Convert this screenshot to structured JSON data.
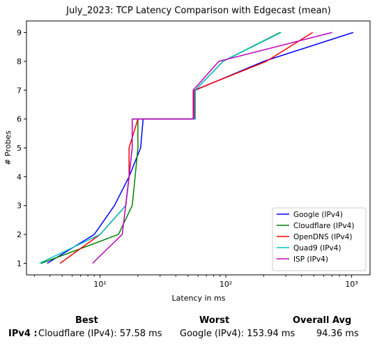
{
  "chart_data": {
    "type": "line",
    "title": "July_2023: TCP Latency Comparison with Edgecast (mean)",
    "xlabel": "Latency in ms",
    "ylabel": "# Probes",
    "xscale": "log",
    "xlim": [
      2.6,
      1400
    ],
    "ylim": [
      0.6,
      9.4
    ],
    "xticks": [
      {
        "value": 10,
        "label": "10¹"
      },
      {
        "value": 100,
        "label": "10²"
      },
      {
        "value": 1000,
        "label": "10³"
      }
    ],
    "yticks": [
      1,
      2,
      3,
      4,
      5,
      6,
      7,
      8,
      9
    ],
    "grid": false,
    "legend_position": "lower right",
    "series": [
      {
        "name": "Google (IPv4)",
        "color": "#0000ff",
        "points": [
          [
            3.8,
            1
          ],
          [
            9,
            2
          ],
          [
            13,
            3
          ],
          [
            17,
            4
          ],
          [
            21,
            5
          ],
          [
            22,
            6
          ],
          [
            57,
            6
          ],
          [
            57,
            7
          ],
          [
            200,
            8
          ],
          [
            1030,
            9
          ]
        ]
      },
      {
        "name": "Cloudflare (IPv4)",
        "color": "#008000",
        "points": [
          [
            3.4,
            1
          ],
          [
            14,
            2
          ],
          [
            18,
            3
          ],
          [
            19,
            4
          ],
          [
            20,
            5
          ],
          [
            20,
            6
          ],
          [
            57,
            6
          ],
          [
            57,
            7
          ],
          [
            95,
            8
          ],
          [
            270,
            9
          ]
        ]
      },
      {
        "name": "OpenDNS (IPv4)",
        "color": "#ff0000",
        "points": [
          [
            4.8,
            1
          ],
          [
            10,
            2
          ],
          [
            16,
            3
          ],
          [
            17,
            4
          ],
          [
            17,
            5
          ],
          [
            20,
            6
          ],
          [
            56,
            6
          ],
          [
            56,
            7
          ],
          [
            210,
            8
          ],
          [
            490,
            9
          ]
        ]
      },
      {
        "name": "Quad9 (IPv4)",
        "color": "#00bfbf",
        "points": [
          [
            3.3,
            1
          ],
          [
            10,
            2
          ],
          [
            16,
            3
          ],
          [
            17,
            4
          ],
          [
            18,
            5
          ],
          [
            18,
            6
          ],
          [
            57,
            6
          ],
          [
            57,
            7
          ],
          [
            95,
            8
          ],
          [
            275,
            9
          ]
        ]
      },
      {
        "name": "ISP (IPv4)",
        "color": "#bf00bf",
        "points": [
          [
            8.7,
            1
          ],
          [
            15,
            2
          ],
          [
            16,
            3
          ],
          [
            17,
            4
          ],
          [
            18,
            5
          ],
          [
            18,
            6
          ],
          [
            55,
            6
          ],
          [
            55,
            7
          ],
          [
            88,
            8
          ],
          [
            700,
            9
          ]
        ]
      }
    ]
  },
  "summary": {
    "row_label": "IPv4 :",
    "best_header": "Best",
    "worst_header": "Worst",
    "avg_header": "Overall Avg",
    "best_value": "Cloudflare (IPv4): 57.58 ms",
    "worst_value": "Google (IPv4): 153.94 ms",
    "avg_value": "94.36 ms"
  }
}
